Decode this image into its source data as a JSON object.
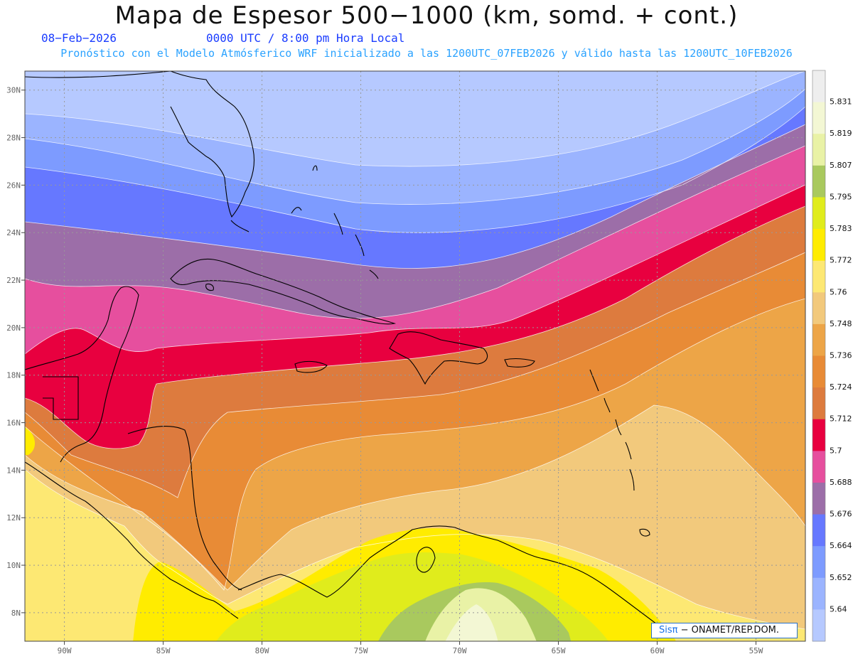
{
  "header": {
    "title": "Mapa de Espesor 500−1000 (km, somd. + cont.)",
    "date": "08−Feb−2026",
    "time": "0000 UTC / 8:00 pm Hora Local",
    "subtitle": "Pronóstico con el Modelo Atmósferico WRF inicializado a las 1200UTC_07FEB2026 y válido hasta las  1200UTC_10FEB2026"
  },
  "map": {
    "lon_range": [
      -92,
      -52.5
    ],
    "lat_range": [
      6.8,
      30.8
    ],
    "lon_ticks": [
      {
        "value": -90,
        "label": "90W"
      },
      {
        "value": -85,
        "label": "85W"
      },
      {
        "value": -80,
        "label": "80W"
      },
      {
        "value": -75,
        "label": "75W"
      },
      {
        "value": -70,
        "label": "70W"
      },
      {
        "value": -65,
        "label": "65W"
      },
      {
        "value": -60,
        "label": "60W"
      },
      {
        "value": -55,
        "label": "55W"
      }
    ],
    "lat_ticks": [
      {
        "value": 30,
        "label": "30N"
      },
      {
        "value": 28,
        "label": "28N"
      },
      {
        "value": 26,
        "label": "26N"
      },
      {
        "value": 24,
        "label": "24N"
      },
      {
        "value": 22,
        "label": "22N"
      },
      {
        "value": 20,
        "label": "20N"
      },
      {
        "value": 18,
        "label": "18N"
      },
      {
        "value": 16,
        "label": "16N"
      },
      {
        "value": 14,
        "label": "14N"
      },
      {
        "value": 12,
        "label": "12N"
      },
      {
        "value": 10,
        "label": "10N"
      },
      {
        "value": 8,
        "label": "8N"
      }
    ],
    "grid": "dotted"
  },
  "colorbar": {
    "colors": [
      "#eeeeee",
      "#f3f7d4",
      "#e9f2a6",
      "#a9c95e",
      "#e0ec1c",
      "#ffec00",
      "#fde873",
      "#f2c97c",
      "#eda547",
      "#e88b36",
      "#dd7b3e",
      "#e8003f",
      "#e64f9e",
      "#9c6ea8",
      "#6678ff",
      "#7d9bff",
      "#9bb4ff",
      "#b6c9ff"
    ],
    "labels": [
      "5.831",
      "5.819",
      "5.807",
      "5.795",
      "5.783",
      "5.772",
      "5.76",
      "5.748",
      "5.736",
      "5.724",
      "5.712",
      "5.7",
      "5.688",
      "5.676",
      "5.664",
      "5.652",
      "5.64"
    ]
  },
  "credit": {
    "sis": "Sisπ",
    "text": "− ONAMET/REP.DOM."
  }
}
